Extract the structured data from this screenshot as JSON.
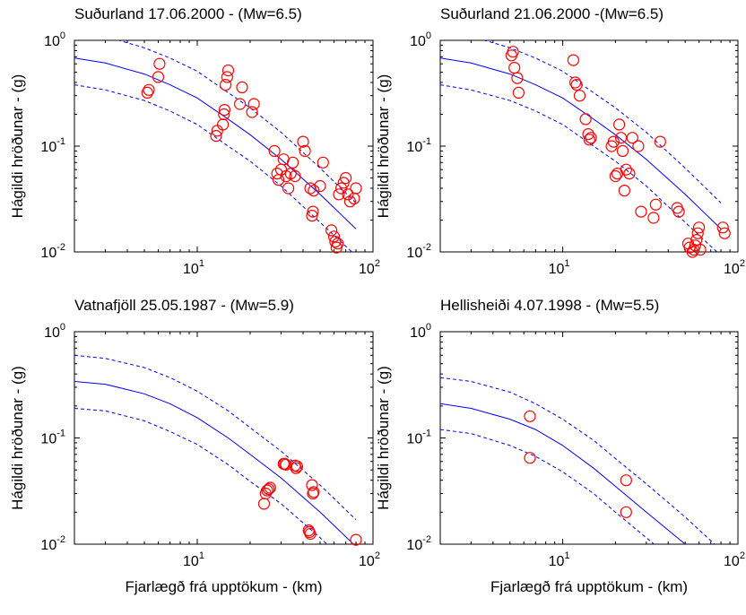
{
  "chart_data": [
    {
      "type": "scatter",
      "title": "Suðurland 17.06.2000 - (Mw=6.5)",
      "xlabel": "",
      "ylabel": "Hágildi hröðunar - (g)",
      "xscale": "log",
      "yscale": "log",
      "xlim": [
        2,
        100
      ],
      "ylim": [
        0.01,
        1
      ],
      "xticks": [
        {
          "base": "10",
          "exp": "1"
        },
        {
          "base": "10",
          "exp": "2"
        }
      ],
      "yticks": [
        {
          "base": "10",
          "exp": "0"
        },
        {
          "base": "10",
          "exp": "-1"
        },
        {
          "base": "10",
          "exp": "-2"
        }
      ],
      "grid": false,
      "points_color": "#ff0000",
      "line_color": "#0000ff",
      "model_curve": {
        "x": [
          2,
          3,
          5,
          7,
          10,
          15,
          20,
          30,
          50,
          80
        ],
        "median": [
          0.68,
          0.61,
          0.48,
          0.38,
          0.285,
          0.18,
          0.128,
          0.075,
          0.035,
          0.0165
        ],
        "upper": [
          1.2,
          1.09,
          0.85,
          0.68,
          0.51,
          0.32,
          0.23,
          0.135,
          0.062,
          0.029
        ],
        "lower": [
          0.38,
          0.34,
          0.27,
          0.215,
          0.16,
          0.1,
          0.072,
          0.042,
          0.019,
          0.0092
        ]
      },
      "points": {
        "x": [
          5.2,
          5.3,
          6,
          6.1,
          12.8,
          13,
          14,
          14.2,
          14.3,
          14.5,
          14.8,
          15,
          17.5,
          18,
          20.5,
          21,
          27.5,
          28.5,
          29,
          30,
          31,
          32,
          33,
          34,
          35,
          36,
          40,
          41,
          44,
          45,
          45.5,
          46,
          50,
          52,
          58,
          60,
          61,
          62,
          63,
          64,
          66,
          68,
          70,
          72,
          74,
          78,
          80
        ],
        "y": [
          0.32,
          0.34,
          0.45,
          0.6,
          0.125,
          0.14,
          0.16,
          0.2,
          0.22,
          0.38,
          0.45,
          0.52,
          0.25,
          0.36,
          0.21,
          0.25,
          0.09,
          0.055,
          0.048,
          0.06,
          0.075,
          0.052,
          0.04,
          0.055,
          0.07,
          0.052,
          0.11,
          0.09,
          0.04,
          0.022,
          0.024,
          0.038,
          0.042,
          0.07,
          0.016,
          0.014,
          0.0125,
          0.011,
          0.012,
          0.035,
          0.04,
          0.045,
          0.05,
          0.035,
          0.03,
          0.032,
          0.04
        ]
      }
    },
    {
      "type": "scatter",
      "title": "Suðurland 21.06.2000 -(Mw=6.5)",
      "xlabel": "",
      "ylabel": "Hágildi hröðunar - (g)",
      "xscale": "log",
      "yscale": "log",
      "xlim": [
        2,
        100
      ],
      "ylim": [
        0.01,
        1
      ],
      "xticks": [
        {
          "base": "10",
          "exp": "1"
        },
        {
          "base": "10",
          "exp": "2"
        }
      ],
      "yticks": [
        {
          "base": "10",
          "exp": "0"
        },
        {
          "base": "10",
          "exp": "-1"
        },
        {
          "base": "10",
          "exp": "-2"
        }
      ],
      "grid": false,
      "points_color": "#ff0000",
      "line_color": "#0000ff",
      "model_curve": {
        "x": [
          2,
          3,
          5,
          7,
          10,
          15,
          20,
          30,
          50,
          80
        ],
        "median": [
          0.68,
          0.61,
          0.48,
          0.38,
          0.285,
          0.18,
          0.128,
          0.075,
          0.035,
          0.0165
        ],
        "upper": [
          1.2,
          1.09,
          0.85,
          0.68,
          0.51,
          0.32,
          0.23,
          0.135,
          0.062,
          0.029
        ],
        "lower": [
          0.38,
          0.34,
          0.27,
          0.215,
          0.16,
          0.1,
          0.072,
          0.042,
          0.019,
          0.0092
        ]
      },
      "points": {
        "x": [
          5.1,
          5.2,
          5.3,
          5.5,
          5.6,
          11.5,
          11.8,
          12,
          12.5,
          13.5,
          14,
          14.2,
          14.5,
          19,
          19.5,
          20,
          20.5,
          21,
          21.5,
          22,
          22.5,
          23,
          24,
          25,
          27,
          28,
          33,
          34,
          36,
          45,
          46,
          52,
          53,
          55,
          56,
          57,
          58,
          59,
          60,
          61,
          82,
          84
        ],
        "y": [
          0.72,
          0.78,
          0.55,
          0.44,
          0.32,
          0.65,
          0.4,
          0.38,
          0.3,
          0.18,
          0.13,
          0.115,
          0.12,
          0.1,
          0.11,
          0.052,
          0.055,
          0.16,
          0.12,
          0.09,
          0.038,
          0.06,
          0.055,
          0.12,
          0.1,
          0.024,
          0.021,
          0.028,
          0.11,
          0.026,
          0.024,
          0.012,
          0.011,
          0.01,
          0.0105,
          0.0115,
          0.013,
          0.015,
          0.017,
          0.0105,
          0.017,
          0.015
        ]
      }
    },
    {
      "type": "scatter",
      "title": "Vatnafjöll 25.05.1987 - (Mw=5.9)",
      "xlabel": "Fjarlægð frá upptökum - (km)",
      "ylabel": "Hágildi hröðunar - (g)",
      "xscale": "log",
      "yscale": "log",
      "xlim": [
        2,
        100
      ],
      "ylim": [
        0.01,
        1
      ],
      "xticks": [
        {
          "base": "10",
          "exp": "1"
        },
        {
          "base": "10",
          "exp": "2"
        }
      ],
      "yticks": [
        {
          "base": "10",
          "exp": "0"
        },
        {
          "base": "10",
          "exp": "-1"
        },
        {
          "base": "10",
          "exp": "-2"
        }
      ],
      "grid": false,
      "points_color": "#ff0000",
      "line_color": "#0000ff",
      "model_curve": {
        "x": [
          2,
          3,
          5,
          7,
          10,
          15,
          20,
          30,
          50,
          80
        ],
        "median": [
          0.34,
          0.32,
          0.26,
          0.21,
          0.155,
          0.1,
          0.07,
          0.042,
          0.02,
          0.0095
        ],
        "upper": [
          0.6,
          0.56,
          0.46,
          0.37,
          0.275,
          0.18,
          0.125,
          0.075,
          0.036,
          0.017
        ],
        "lower": [
          0.19,
          0.18,
          0.145,
          0.115,
          0.087,
          0.056,
          0.039,
          0.024,
          0.0115,
          0.0055
        ]
      },
      "points": {
        "x": [
          24,
          24.5,
          25,
          25.5,
          26,
          31,
          31.5,
          32,
          36,
          36.5,
          37,
          43,
          43.5,
          44,
          45,
          45.5,
          46,
          80
        ],
        "y": [
          0.024,
          0.03,
          0.032,
          0.033,
          0.034,
          0.057,
          0.057,
          0.056,
          0.055,
          0.052,
          0.054,
          0.0135,
          0.013,
          0.0125,
          0.036,
          0.03,
          0.031,
          0.011
        ]
      }
    },
    {
      "type": "scatter",
      "title": "Hellisheiði  4.07.1998 - (Mw=5.5)",
      "xlabel": "Fjarlægð frá upptökum - (km)",
      "ylabel": "Hágildi hröðunar - (g)",
      "xscale": "log",
      "yscale": "log",
      "xlim": [
        2,
        100
      ],
      "ylim": [
        0.01,
        1
      ],
      "xticks": [
        {
          "base": "10",
          "exp": "1"
        },
        {
          "base": "10",
          "exp": "2"
        }
      ],
      "yticks": [
        {
          "base": "10",
          "exp": "0"
        },
        {
          "base": "10",
          "exp": "-1"
        },
        {
          "base": "10",
          "exp": "-2"
        }
      ],
      "grid": false,
      "points_color": "#ff0000",
      "line_color": "#0000ff",
      "model_curve": {
        "x": [
          2,
          3,
          5,
          7,
          10,
          15,
          20,
          30,
          50,
          80
        ],
        "median": [
          0.21,
          0.19,
          0.15,
          0.12,
          0.085,
          0.052,
          0.035,
          0.02,
          0.01,
          0.005
        ],
        "upper": [
          0.37,
          0.34,
          0.27,
          0.21,
          0.15,
          0.095,
          0.064,
          0.037,
          0.018,
          0.0088
        ],
        "lower": [
          0.12,
          0.11,
          0.085,
          0.067,
          0.048,
          0.03,
          0.02,
          0.0115,
          0.0057,
          0.0028
        ]
      },
      "points": {
        "x": [
          6.5,
          6.5,
          23,
          23
        ],
        "y": [
          0.16,
          0.065,
          0.04,
          0.02
        ]
      }
    }
  ]
}
